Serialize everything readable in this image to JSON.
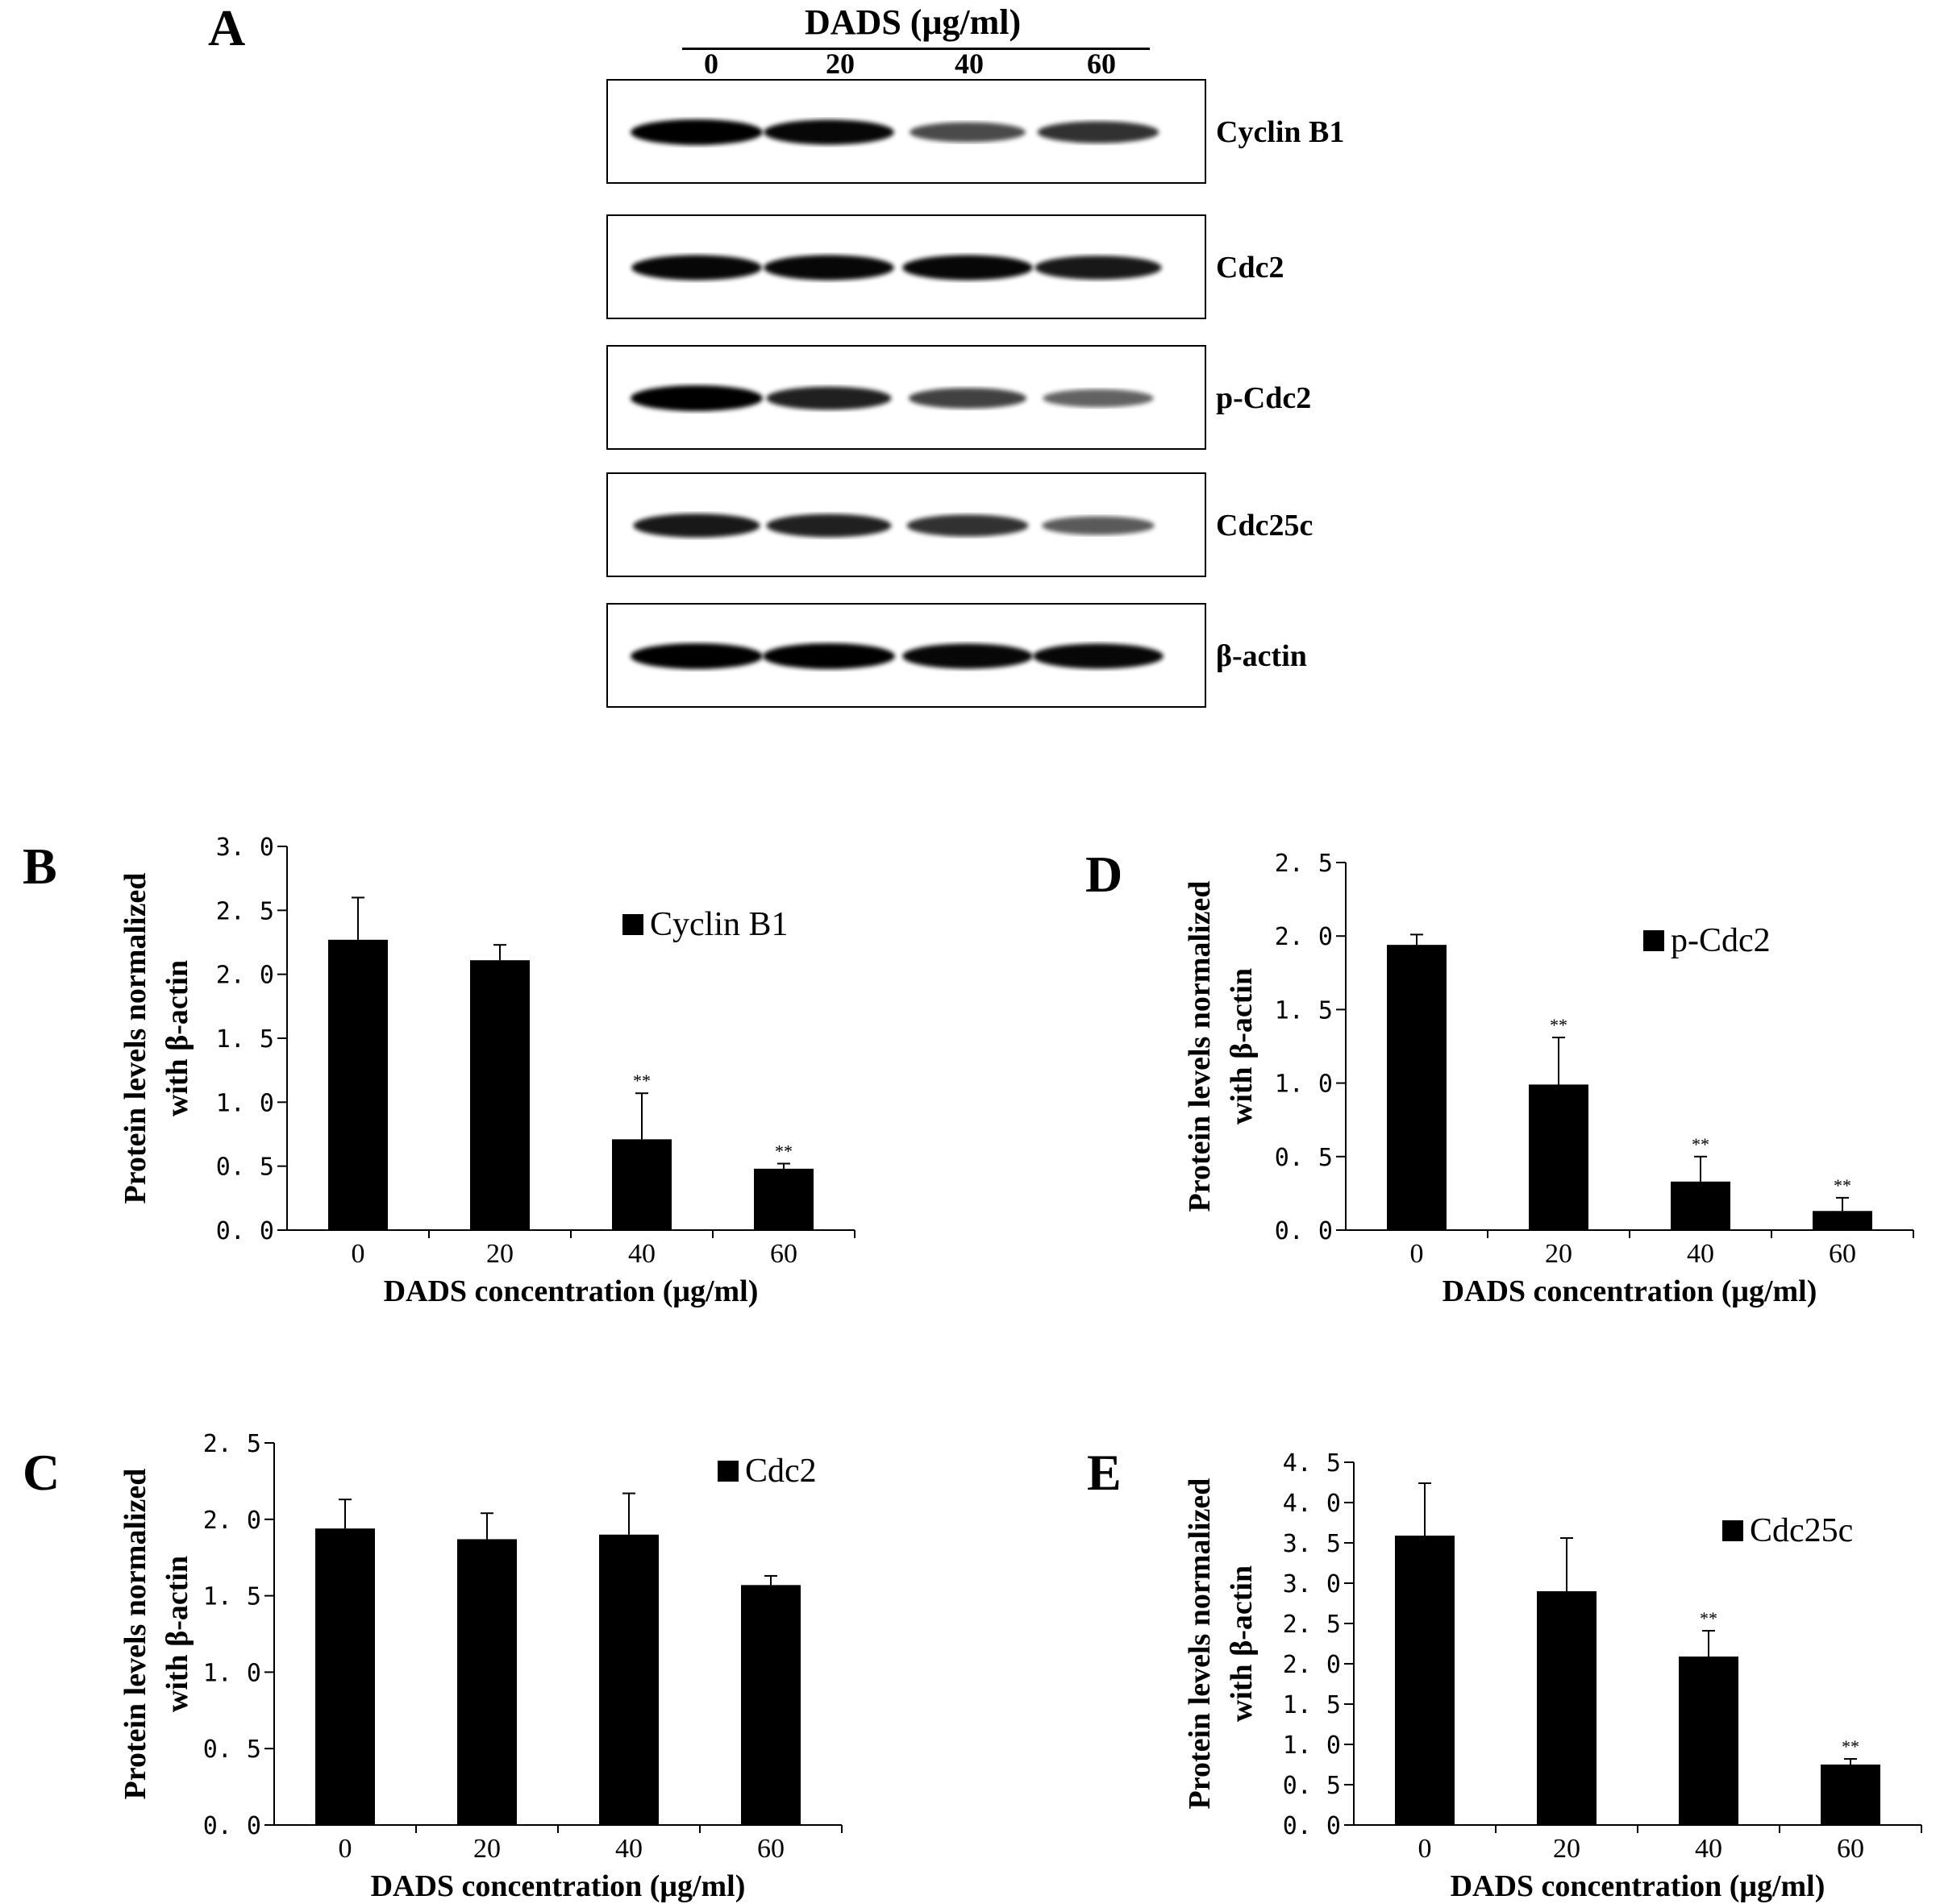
{
  "panel_A": {
    "letter": "A",
    "header": "DADS (μg/ml)",
    "lanes": [
      "0",
      "20",
      "40",
      "60"
    ],
    "blots": [
      {
        "label": "Cyclin B1",
        "intensity": [
          1.0,
          0.95,
          0.55,
          0.7
        ]
      },
      {
        "label": "Cdc2",
        "intensity": [
          0.95,
          0.95,
          0.95,
          0.85
        ]
      },
      {
        "label": "p-Cdc2",
        "intensity": [
          1.0,
          0.8,
          0.6,
          0.4
        ]
      },
      {
        "label": "Cdc25c",
        "intensity": [
          0.85,
          0.8,
          0.7,
          0.45
        ]
      },
      {
        "label": "β-actin",
        "intensity": [
          1.0,
          1.0,
          0.95,
          0.95
        ]
      }
    ]
  },
  "chart_data": [
    {
      "panel": "B",
      "type": "bar",
      "categories": [
        "0",
        "20",
        "40",
        "60"
      ],
      "series": [
        {
          "name": "Cyclin B1",
          "values": [
            2.27,
            2.11,
            0.71,
            0.48
          ],
          "errors": [
            0.33,
            0.12,
            0.36,
            0.04
          ]
        }
      ],
      "significance": [
        "",
        "",
        "**",
        "**"
      ],
      "xlabel": "DADS concentration (μg/ml)",
      "ylabel": [
        "Protein levels normalized",
        "with β-actin"
      ],
      "ylim": [
        0,
        3.0
      ],
      "yticks": [
        "0. 0",
        "0. 5",
        "1. 0",
        "1. 5",
        "2. 0",
        "2. 5",
        "3. 0"
      ],
      "legend": "inside-top-right"
    },
    {
      "panel": "C",
      "type": "bar",
      "categories": [
        "0",
        "20",
        "40",
        "60"
      ],
      "series": [
        {
          "name": "Cdc2",
          "values": [
            1.94,
            1.87,
            1.9,
            1.57
          ],
          "errors": [
            0.19,
            0.17,
            0.27,
            0.06
          ]
        }
      ],
      "significance": [
        "",
        "",
        "",
        ""
      ],
      "xlabel": "DADS concentration (μg/ml)",
      "ylabel": [
        "Protein levels normalized",
        "with β-actin"
      ],
      "ylim": [
        0,
        2.5
      ],
      "yticks": [
        "0. 0",
        "0. 5",
        "1. 0",
        "1. 5",
        "2. 0",
        "2. 5"
      ],
      "legend": "inside-top-right"
    },
    {
      "panel": "D",
      "type": "bar",
      "categories": [
        "0",
        "20",
        "40",
        "60"
      ],
      "series": [
        {
          "name": "p-Cdc2",
          "values": [
            1.94,
            0.99,
            0.33,
            0.13
          ],
          "errors": [
            0.07,
            0.32,
            0.17,
            0.09
          ]
        }
      ],
      "significance": [
        "",
        "**",
        "**",
        "**"
      ],
      "xlabel": "DADS concentration (μg/ml)",
      "ylabel": [
        "Protein levels normalized",
        "with β-actin"
      ],
      "ylim": [
        0,
        2.5
      ],
      "yticks": [
        "0. 0",
        "0. 5",
        "1. 0",
        "1. 5",
        "2. 0",
        "2. 5"
      ],
      "legend": "inside-top-right"
    },
    {
      "panel": "E",
      "type": "bar",
      "categories": [
        "0",
        "20",
        "40",
        "60"
      ],
      "series": [
        {
          "name": "Cdc25c",
          "values": [
            3.59,
            2.9,
            2.09,
            0.75
          ],
          "errors": [
            0.65,
            0.66,
            0.32,
            0.07
          ]
        }
      ],
      "significance": [
        "",
        "",
        "**",
        "**"
      ],
      "xlabel": "DADS concentration (μg/ml)",
      "ylabel": [
        "Protein levels normalized",
        "with β-actin"
      ],
      "ylim": [
        0,
        4.5
      ],
      "yticks": [
        "0. 0",
        "0. 5",
        "1. 0",
        "1. 5",
        "2. 0",
        "2. 5",
        "3. 0",
        "3. 5",
        "4. 0",
        "4. 5"
      ],
      "legend": "inside-top-right"
    }
  ]
}
